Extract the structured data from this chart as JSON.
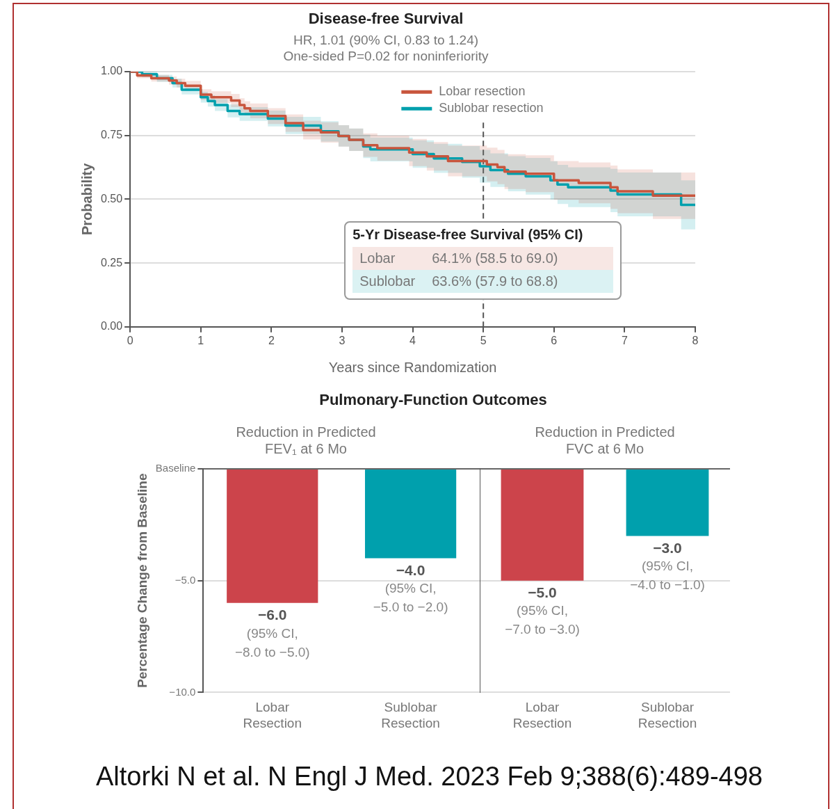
{
  "chart_data": [
    {
      "type": "step",
      "title": "Disease-free Survival",
      "subtitle": "HR, 1.01 (90% CI, 0.83 to 1.24)\nOne-sided P=0.02 for noninferiority",
      "xlabel": "Years since Randomization",
      "ylabel": "Probability",
      "xlim": [
        0,
        8
      ],
      "xticks": [
        0,
        1,
        2,
        3,
        4,
        5,
        6,
        7,
        8
      ],
      "ylim": [
        0,
        1
      ],
      "yticks": [
        {
          "value": 0,
          "label": "0.00"
        },
        {
          "value": 0.25,
          "label": "0.25"
        },
        {
          "value": 0.5,
          "label": "0.50"
        },
        {
          "value": 0.75,
          "label": "0.75"
        },
        {
          "value": 1,
          "label": "1.00"
        }
      ],
      "grid": "y",
      "legend": "top right",
      "series": [
        {
          "name": "Lobar resection",
          "color": "#c8553d",
          "x": [
            0,
            0.1,
            0.3,
            0.55,
            0.66,
            0.78,
            1.0,
            1.15,
            1.43,
            1.55,
            1.62,
            1.7,
            1.95,
            2.2,
            2.45,
            2.7,
            2.95,
            3.1,
            3.3,
            3.5,
            3.95,
            4.2,
            4.5,
            5.05,
            5.2,
            5.3,
            5.6,
            6.0,
            6.35,
            6.8,
            6.9,
            7.4,
            8.0
          ],
          "values": [
            1.0,
            0.985,
            0.974,
            0.965,
            0.955,
            0.945,
            0.91,
            0.9,
            0.887,
            0.869,
            0.856,
            0.846,
            0.826,
            0.798,
            0.771,
            0.762,
            0.748,
            0.733,
            0.712,
            0.7,
            0.683,
            0.668,
            0.65,
            0.636,
            0.626,
            0.608,
            0.6,
            0.574,
            0.564,
            0.547,
            0.531,
            0.514,
            0.514
          ],
          "lower": [
            1.0,
            0.974,
            0.961,
            0.949,
            0.938,
            0.926,
            0.889,
            0.877,
            0.861,
            0.842,
            0.828,
            0.817,
            0.795,
            0.764,
            0.734,
            0.722,
            0.706,
            0.689,
            0.666,
            0.651,
            0.63,
            0.612,
            0.59,
            0.57,
            0.559,
            0.54,
            0.528,
            0.498,
            0.484,
            0.462,
            0.445,
            0.423,
            0.416
          ],
          "upper": [
            1.0,
            0.996,
            0.987,
            0.981,
            0.972,
            0.964,
            0.931,
            0.923,
            0.913,
            0.896,
            0.884,
            0.875,
            0.857,
            0.832,
            0.808,
            0.802,
            0.79,
            0.777,
            0.758,
            0.749,
            0.736,
            0.724,
            0.71,
            0.702,
            0.693,
            0.676,
            0.672,
            0.65,
            0.644,
            0.632,
            0.617,
            0.605,
            0.612
          ]
        },
        {
          "name": "Sublobar resection",
          "color": "#00a0ad",
          "x": [
            0,
            0.17,
            0.38,
            0.6,
            0.73,
            1.0,
            1.1,
            1.2,
            1.38,
            1.55,
            1.95,
            2.2,
            2.7,
            2.95,
            3.1,
            3.3,
            3.4,
            4.0,
            4.3,
            4.7,
            4.95,
            5.1,
            5.35,
            5.6,
            5.95,
            6.05,
            6.2,
            6.8,
            6.9,
            7.8,
            8.0
          ],
          "values": [
            1.0,
            0.99,
            0.974,
            0.955,
            0.929,
            0.9,
            0.885,
            0.869,
            0.846,
            0.834,
            0.816,
            0.789,
            0.766,
            0.748,
            0.733,
            0.707,
            0.695,
            0.677,
            0.66,
            0.646,
            0.629,
            0.614,
            0.6,
            0.59,
            0.574,
            0.558,
            0.547,
            0.534,
            0.519,
            0.478,
            0.478
          ],
          "lower": [
            1.0,
            0.978,
            0.96,
            0.938,
            0.911,
            0.879,
            0.863,
            0.846,
            0.821,
            0.807,
            0.785,
            0.755,
            0.726,
            0.706,
            0.689,
            0.661,
            0.648,
            0.623,
            0.603,
            0.584,
            0.565,
            0.548,
            0.531,
            0.518,
            0.499,
            0.481,
            0.469,
            0.449,
            0.433,
            0.382,
            0.382
          ],
          "upper": [
            1.0,
            1.0,
            0.988,
            0.972,
            0.947,
            0.921,
            0.907,
            0.892,
            0.871,
            0.861,
            0.847,
            0.823,
            0.806,
            0.79,
            0.777,
            0.753,
            0.742,
            0.731,
            0.717,
            0.708,
            0.693,
            0.68,
            0.669,
            0.662,
            0.649,
            0.635,
            0.625,
            0.619,
            0.605,
            0.574,
            0.574
          ]
        }
      ],
      "ref_lines": [
        {
          "axis": "x",
          "value": 5,
          "line_style": "dashed",
          "color": "#555555"
        }
      ],
      "annotations": [
        "5-Yr Disease-free Survival (95% CI)",
        "Lobar",
        "64.1% (58.5 to 69.0)",
        "Sublobar",
        "63.6% (57.9 to 68.8)"
      ]
    },
    {
      "type": "bar",
      "title": "Pulmonary-Function Outcomes",
      "subtitle": "Reduction in Predicted\nFEV₁ at 6 Mo",
      "ylabel": "Percentage Change from Baseline",
      "categories": [
        "Lobar Resection",
        "Sublobar Resection"
      ],
      "values": [
        -6.0,
        -4.0
      ],
      "colors": [
        "#cc444b",
        "#00a0ad"
      ],
      "ylim": [
        -10,
        0
      ],
      "yticks": [
        {
          "value": -10,
          "label": "−10.0"
        },
        {
          "value": -5,
          "label": "−5.0"
        },
        {
          "value": 0,
          "label": "Baseline"
        }
      ],
      "grid": "y",
      "value_labels": [
        "−6.0\n(95% CI,\n−8.0 to −5.0)",
        "−4.0\n(95% CI,\n−5.0 to −2.0)"
      ]
    },
    {
      "type": "bar",
      "subtitle": "Reduction in Predicted\nFVC at 6 Mo",
      "categories": [
        "Lobar Resection",
        "Sublobar Resection"
      ],
      "values": [
        -5.0,
        -3.0
      ],
      "colors": [
        "#cc444b",
        "#00a0ad"
      ],
      "ylim": [
        -10,
        0
      ],
      "yticks": [
        -10,
        -5,
        0
      ],
      "grid": "y",
      "tick_labels": "x",
      "value_labels": [
        "−5.0\n(95% CI,\n−7.0 to −3.0)",
        "−3.0\n(95% CI,\n−4.0 to −1.0)"
      ],
      "annotations": [
        "Altorki N et al. N Engl J Med. 2023 Feb 9;388(6):489-498"
      ]
    }
  ]
}
